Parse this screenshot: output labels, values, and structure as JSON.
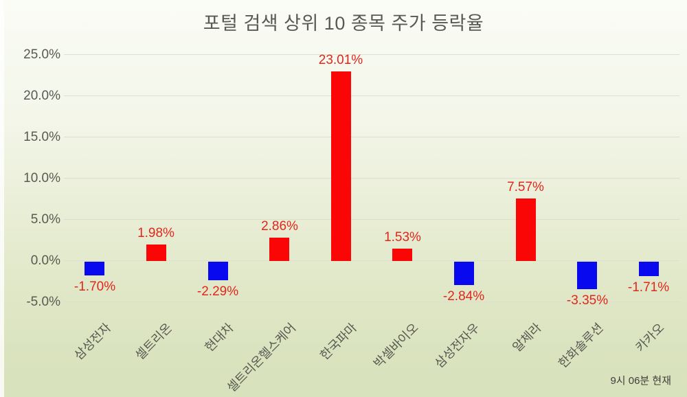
{
  "title": "포털 검색 상위 10 종목 주가 등락율",
  "footnote": "9시 06분 현재",
  "colors": {
    "positive_bar": "#fb0606",
    "negative_bar": "#0909ef",
    "value_label": "#e3261b",
    "axis_text": "#595952",
    "gridline": "#dcdfcd",
    "background_top": "#fafcf6",
    "background_bottom": "#d8e2bc"
  },
  "chart_data": {
    "type": "bar",
    "title": "포털 검색 상위 10 종목 주가 등락율",
    "categories": [
      "삼성전자",
      "셀트리온",
      "현대차",
      "셀트리온헬스케어",
      "한국파마",
      "박셀바이오",
      "삼성전자우",
      "알체라",
      "한화솔루션",
      "카카오"
    ],
    "values": [
      -1.7,
      1.98,
      -2.29,
      2.86,
      23.01,
      1.53,
      -2.84,
      7.57,
      -3.35,
      -1.71
    ],
    "value_labels": [
      "-1.70%",
      "1.98%",
      "-2.29%",
      "2.86%",
      "23.01%",
      "1.53%",
      "-2.84%",
      "7.57%",
      "-3.35%",
      "-1.71%"
    ],
    "xlabel": "",
    "ylabel": "",
    "ylim": [
      -5,
      25
    ],
    "ytick_step": 5,
    "yticks": [
      25,
      20,
      15,
      10,
      5,
      0,
      -5
    ],
    "ytick_labels": [
      "25.0%",
      "20.0%",
      "15.0%",
      "10.0%",
      "5.0%",
      "0.0%",
      "-5.0%"
    ],
    "grid": true,
    "legend": false,
    "annotation": "9시 06분 현재"
  }
}
